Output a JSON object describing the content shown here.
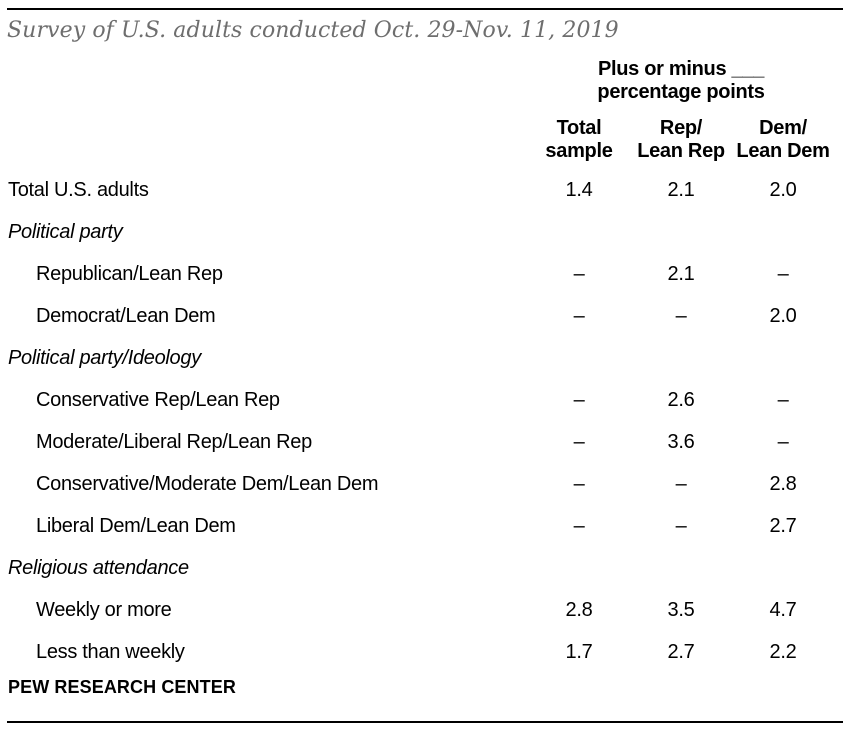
{
  "note": "Survey of U.S. adults conducted Oct. 29-Nov. 11, 2019",
  "footer": {
    "source": "PEW RESEARCH CENTER"
  },
  "colors": {
    "text": "#000000",
    "note_text": "#6e6e6e",
    "rule": "#000000",
    "background": "#ffffff"
  },
  "chart_data": {
    "type": "table",
    "title": "Plus or minus ___\npercentage points",
    "columns": [
      "Total\nsample",
      "Rep/\nLean Rep",
      "Dem/\nLean Dem"
    ],
    "missing_marker": "–",
    "rows": [
      {
        "type": "data",
        "label": "Total U.S. adults",
        "indent": false,
        "values": [
          "1.4",
          "2.1",
          "2.0"
        ]
      },
      {
        "type": "section",
        "label": "Political party"
      },
      {
        "type": "data",
        "label": "Republican/Lean Rep",
        "indent": true,
        "values": [
          "–",
          "2.1",
          "–"
        ]
      },
      {
        "type": "data",
        "label": "Democrat/Lean Dem",
        "indent": true,
        "values": [
          "–",
          "–",
          "2.0"
        ]
      },
      {
        "type": "section",
        "label": "Political party/Ideology"
      },
      {
        "type": "data",
        "label": "Conservative Rep/Lean Rep",
        "indent": true,
        "values": [
          "–",
          "2.6",
          "–"
        ]
      },
      {
        "type": "data",
        "label": "Moderate/Liberal Rep/Lean Rep",
        "indent": true,
        "values": [
          "–",
          "3.6",
          "–"
        ]
      },
      {
        "type": "data",
        "label": "Conservative/Moderate Dem/Lean Dem",
        "indent": true,
        "values": [
          "–",
          "–",
          "2.8"
        ]
      },
      {
        "type": "data",
        "label": "Liberal Dem/Lean Dem",
        "indent": true,
        "values": [
          "–",
          "–",
          "2.7"
        ]
      },
      {
        "type": "section",
        "label": "Religious attendance"
      },
      {
        "type": "data",
        "label": "Weekly or more",
        "indent": true,
        "values": [
          "2.8",
          "3.5",
          "4.7"
        ]
      },
      {
        "type": "data",
        "label": "Less than weekly",
        "indent": true,
        "values": [
          "1.7",
          "2.7",
          "2.2"
        ]
      }
    ]
  }
}
